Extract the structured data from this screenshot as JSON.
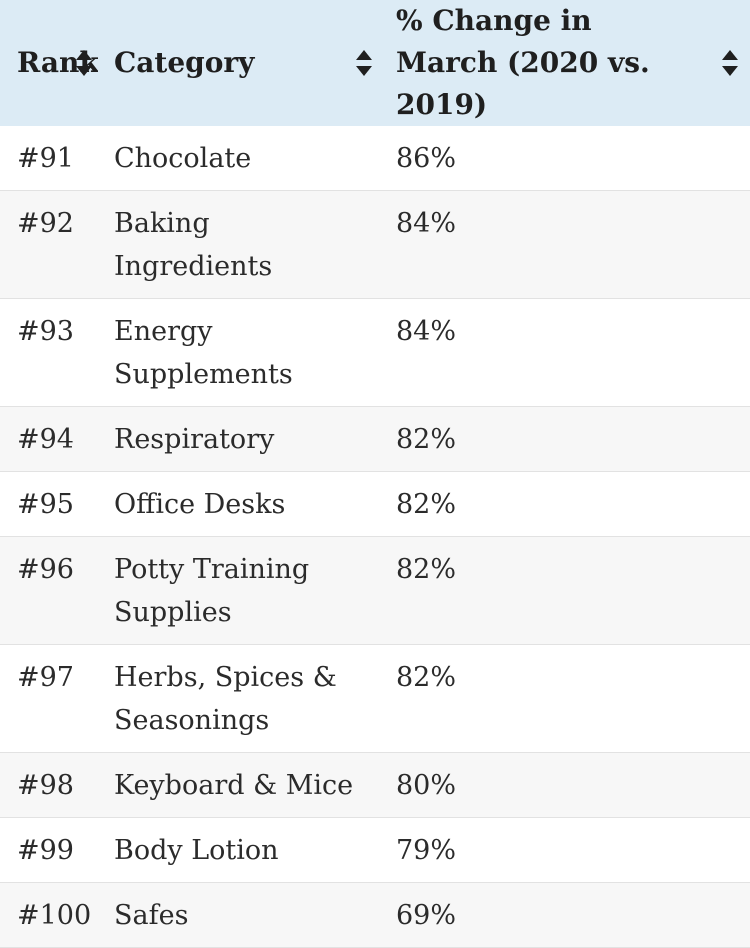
{
  "table": {
    "headers": {
      "rank": "Rank",
      "category": "Category",
      "pct_change": "% Change in March (2020 vs. 2019)"
    },
    "rows": [
      {
        "rank": "#91",
        "category": "Chocolate",
        "pct": "86%"
      },
      {
        "rank": "#92",
        "category": "Baking Ingredients",
        "pct": "84%"
      },
      {
        "rank": "#93",
        "category": "Energy Supplements",
        "pct": "84%"
      },
      {
        "rank": "#94",
        "category": "Respiratory",
        "pct": "82%"
      },
      {
        "rank": "#95",
        "category": "Office Desks",
        "pct": "82%"
      },
      {
        "rank": "#96",
        "category": "Potty Training Supplies",
        "pct": "82%"
      },
      {
        "rank": "#97",
        "category": "Herbs, Spices & Seasonings",
        "pct": "82%"
      },
      {
        "rank": "#98",
        "category": "Keyboard & Mice",
        "pct": "80%"
      },
      {
        "rank": "#99",
        "category": "Body Lotion",
        "pct": "79%"
      },
      {
        "rank": "#100",
        "category": "Safes",
        "pct": "69%"
      }
    ]
  },
  "chart_data": {
    "type": "table",
    "columns": [
      "Rank",
      "Category",
      "% Change in March (2020 vs. 2019)"
    ],
    "rows": [
      [
        "#91",
        "Chocolate",
        "86%"
      ],
      [
        "#92",
        "Baking Ingredients",
        "84%"
      ],
      [
        "#93",
        "Energy Supplements",
        "84%"
      ],
      [
        "#94",
        "Respiratory",
        "82%"
      ],
      [
        "#95",
        "Office Desks",
        "82%"
      ],
      [
        "#96",
        "Potty Training Supplies",
        "82%"
      ],
      [
        "#97",
        "Herbs, Spices & Seasonings",
        "82%"
      ],
      [
        "#98",
        "Keyboard & Mice",
        "80%"
      ],
      [
        "#99",
        "Body Lotion",
        "79%"
      ],
      [
        "#100",
        "Safes",
        "69%"
      ]
    ],
    "values": [
      86,
      84,
      84,
      82,
      82,
      82,
      82,
      80,
      79,
      69
    ]
  },
  "colors": {
    "header_background": "#dcebf5",
    "stripe_background": "#f7f7f7",
    "row_divider": "#e2e2e2",
    "text": "#2b2b2b"
  },
  "icons": {
    "sort": "sort-up-down-icon"
  }
}
